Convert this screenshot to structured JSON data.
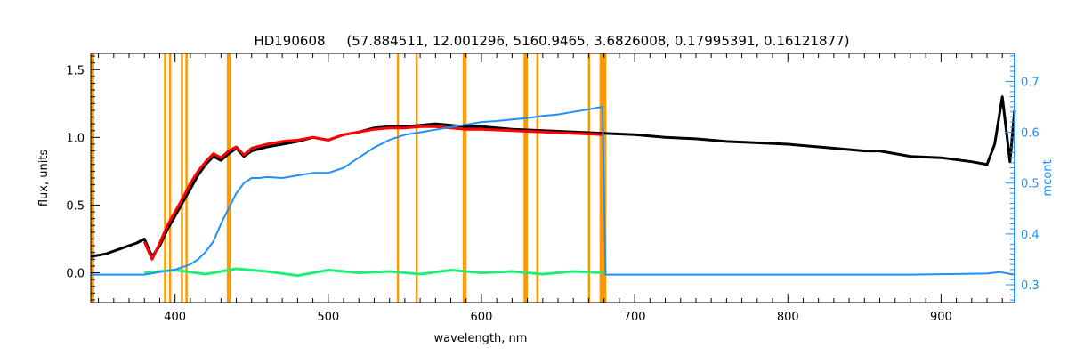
{
  "chart_data": {
    "type": "line",
    "title": "HD190608     (57.884511, 12.001296, 5160.9465, 3.6826008, 0.17995391, 0.16121877)",
    "xlabel": "wavelength, nm",
    "ylabel": "flux, units",
    "y2label": "mcont",
    "xlim": [
      345,
      948
    ],
    "ylim": [
      -0.22,
      1.62
    ],
    "y2lim": [
      0.265,
      0.755
    ],
    "x_ticks": [
      400,
      500,
      600,
      700,
      800,
      900
    ],
    "x_tick_labels": [
      "400",
      "500",
      "600",
      "700",
      "800",
      "900"
    ],
    "y_ticks": [
      0.0,
      0.5,
      1.0,
      1.5
    ],
    "y_tick_labels": [
      "0.0",
      "0.5",
      "1.0",
      "1.5"
    ],
    "y2_ticks": [
      0.3,
      0.4,
      0.5,
      0.6,
      0.7
    ],
    "y2_tick_labels": [
      "0.3",
      "0.4",
      "0.5",
      "0.6",
      "0.7"
    ],
    "grid": false,
    "colors": {
      "observed": "#000000",
      "model": "#ff0000",
      "residual": "#22ee77",
      "mcont": "#1e8fff",
      "masks": "#ff9900",
      "axis_right": "#1e8fff"
    },
    "mask_lines_nm": [
      345.5,
      346.5,
      393.5,
      396.8,
      404.5,
      407.5,
      434.5,
      435.5,
      545.5,
      557.7,
      588.5,
      589.6,
      628.2,
      629.5,
      636.5,
      670.2,
      677.8,
      678.8,
      679.8,
      680.8
    ],
    "series": [
      {
        "x": [
          345,
          355,
          365,
          375,
          380,
          385,
          390,
          395,
          400,
          405,
          410,
          415,
          420,
          425,
          430,
          435,
          440,
          445,
          450,
          460,
          470,
          480,
          490,
          500,
          510,
          520,
          530,
          540,
          550,
          560,
          570,
          580,
          590,
          600,
          620,
          640,
          660,
          680,
          700,
          720,
          740,
          760,
          780,
          800,
          820,
          840,
          850,
          860,
          870,
          880,
          900,
          920,
          930,
          935,
          940,
          945,
          948
        ],
        "y": [
          0.12,
          0.14,
          0.18,
          0.22,
          0.25,
          0.12,
          0.2,
          0.32,
          0.42,
          0.52,
          0.62,
          0.72,
          0.8,
          0.86,
          0.83,
          0.88,
          0.92,
          0.86,
          0.9,
          0.93,
          0.95,
          0.97,
          1.0,
          0.98,
          1.02,
          1.04,
          1.07,
          1.08,
          1.08,
          1.09,
          1.1,
          1.09,
          1.08,
          1.08,
          1.06,
          1.05,
          1.04,
          1.03,
          1.02,
          1.0,
          0.99,
          0.97,
          0.96,
          0.95,
          0.93,
          0.91,
          0.9,
          0.9,
          0.88,
          0.86,
          0.85,
          0.82,
          0.8,
          0.95,
          1.3,
          0.82,
          1.2
        ]
      },
      {
        "x": [
          380,
          385,
          390,
          395,
          400,
          405,
          410,
          415,
          420,
          425,
          430,
          435,
          440,
          445,
          450,
          460,
          470,
          480,
          490,
          500,
          510,
          520,
          530,
          540,
          550,
          560,
          570,
          580,
          590,
          600,
          620,
          640,
          660,
          680
        ],
        "y": [
          0.23,
          0.1,
          0.22,
          0.35,
          0.45,
          0.55,
          0.66,
          0.75,
          0.82,
          0.88,
          0.85,
          0.9,
          0.93,
          0.87,
          0.92,
          0.95,
          0.97,
          0.98,
          1.0,
          0.98,
          1.02,
          1.04,
          1.06,
          1.07,
          1.07,
          1.08,
          1.08,
          1.07,
          1.06,
          1.06,
          1.05,
          1.04,
          1.03,
          1.02
        ]
      },
      {
        "x": [
          380,
          400,
          420,
          440,
          460,
          480,
          500,
          520,
          540,
          560,
          580,
          600,
          620,
          640,
          660,
          680
        ],
        "y": [
          0.0,
          0.02,
          -0.01,
          0.03,
          0.01,
          -0.02,
          0.02,
          0.0,
          0.01,
          -0.01,
          0.02,
          0.0,
          0.01,
          -0.01,
          0.01,
          0.0
        ]
      },
      {
        "x": [
          345,
          380,
          390,
          400,
          410,
          415,
          420,
          425,
          430,
          435,
          440,
          445,
          450,
          455,
          460,
          470,
          480,
          490,
          500,
          510,
          520,
          530,
          540,
          550,
          560,
          570,
          580,
          590,
          600,
          610,
          620,
          630,
          640,
          650,
          660,
          670,
          679,
          681,
          700,
          760,
          800,
          880,
          930,
          938,
          948
        ],
        "y2": [
          0.32,
          0.32,
          0.325,
          0.33,
          0.34,
          0.35,
          0.365,
          0.385,
          0.42,
          0.45,
          0.48,
          0.5,
          0.51,
          0.51,
          0.512,
          0.51,
          0.515,
          0.52,
          0.52,
          0.53,
          0.55,
          0.57,
          0.585,
          0.595,
          0.6,
          0.605,
          0.61,
          0.615,
          0.62,
          0.622,
          0.625,
          0.628,
          0.632,
          0.635,
          0.64,
          0.645,
          0.65,
          0.32,
          0.32,
          0.32,
          0.32,
          0.32,
          0.322,
          0.325,
          0.32
        ]
      }
    ]
  }
}
